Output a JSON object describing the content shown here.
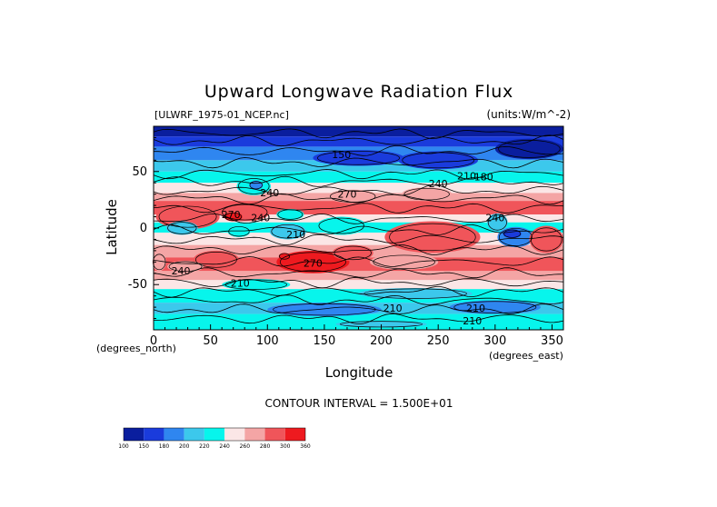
{
  "chart_data": {
    "type": "heatmap",
    "title": "Upward Longwave Radiation Flux",
    "file_label": "[ULWRF_1975-01_NCEP.nc]",
    "units_label": "(units:W/m^-2)",
    "xlabel": "Longitude",
    "ylabel": "Latitude",
    "x_units": "(degrees_east)",
    "y_units": "(degrees_north)",
    "xlim": [
      0,
      360
    ],
    "ylim": [
      -90,
      90
    ],
    "x_ticks": [
      0,
      50,
      100,
      150,
      200,
      250,
      300,
      350
    ],
    "y_ticks": [
      -50,
      0,
      50
    ],
    "contour_interval_text": "CONTOUR INTERVAL = 1.500E+01",
    "colorbar": {
      "boundaries": [
        100,
        150,
        180,
        200,
        220,
        240,
        260,
        280,
        300,
        360
      ],
      "colors": [
        "#0a1e9e",
        "#1a3bdc",
        "#2f86f0",
        "#3cc8ec",
        "#07f5ec",
        "#fbe6e6",
        "#f4a5a5",
        "#f0555a",
        "#ee1a1f"
      ]
    },
    "contour_labels": [
      {
        "text": "150",
        "lon": 165,
        "lat": 62
      },
      {
        "text": "180",
        "lon": 290,
        "lat": 42
      },
      {
        "text": "210",
        "lon": 275,
        "lat": 43
      },
      {
        "text": "240",
        "lon": 102,
        "lat": 28
      },
      {
        "text": "270",
        "lon": 170,
        "lat": 27
      },
      {
        "text": "240",
        "lon": 250,
        "lat": 36
      },
      {
        "text": "270",
        "lon": 68,
        "lat": 9
      },
      {
        "text": "240",
        "lon": 94,
        "lat": 6
      },
      {
        "text": "210",
        "lon": 125,
        "lat": -9
      },
      {
        "text": "270",
        "lon": 140,
        "lat": -34
      },
      {
        "text": "240",
        "lon": 24,
        "lat": -41
      },
      {
        "text": "210",
        "lon": 76,
        "lat": -52
      },
      {
        "text": "210",
        "lon": 210,
        "lat": -74
      },
      {
        "text": "210",
        "lon": 283,
        "lat": -74
      },
      {
        "text": "210",
        "lon": 280,
        "lat": -85
      },
      {
        "text": "240",
        "lon": 300,
        "lat": 6
      }
    ]
  }
}
